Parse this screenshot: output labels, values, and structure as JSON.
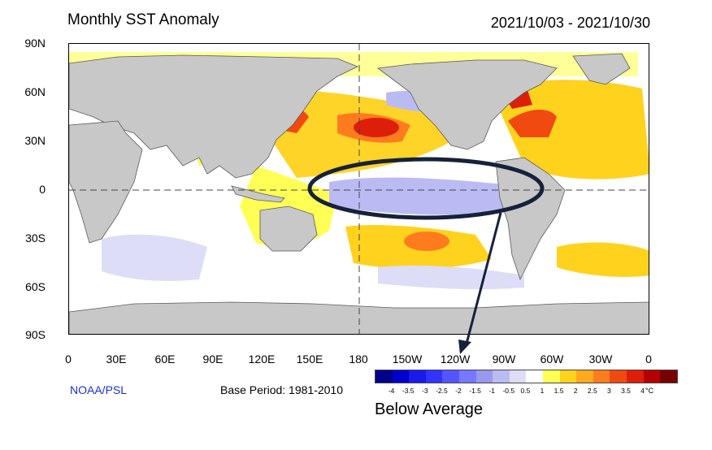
{
  "header": {
    "title": "Monthly SST Anomaly",
    "date_range": "2021/10/03 - 2021/10/30"
  },
  "map": {
    "lat_labels": [
      "90N",
      "60N",
      "30N",
      "0",
      "30S",
      "60S",
      "90S"
    ],
    "lon_labels": [
      "0",
      "30E",
      "60E",
      "90E",
      "120E",
      "150E",
      "180",
      "150W",
      "120W",
      "90W",
      "60W",
      "30W",
      "0"
    ],
    "land_color": "#c8c8c8",
    "ocean_color": "#ffffff"
  },
  "footer": {
    "credit": "NOAA/PSL",
    "base_period": "Base Period: 1981-2010"
  },
  "colorbar": {
    "ticks": [
      "-4",
      "-3.5",
      "-3",
      "-2.5",
      "-2",
      "-1.5",
      "-1",
      "-0.5",
      "0.5",
      "1",
      "1.5",
      "2",
      "2.5",
      "3",
      "3.5",
      "4"
    ],
    "unit": "°C",
    "colors": [
      "#000088",
      "#0000cc",
      "#1a1aee",
      "#3333ff",
      "#5555ff",
      "#7777ff",
      "#9999ee",
      "#bbbbf4",
      "#ddddf8",
      "#ffffff",
      "#ffff55",
      "#ffd21e",
      "#ffaa1e",
      "#ff7c1e",
      "#f04a10",
      "#dd1f0a",
      "#b40000",
      "#7a0000"
    ]
  },
  "annotation": {
    "label": "Below Average"
  }
}
